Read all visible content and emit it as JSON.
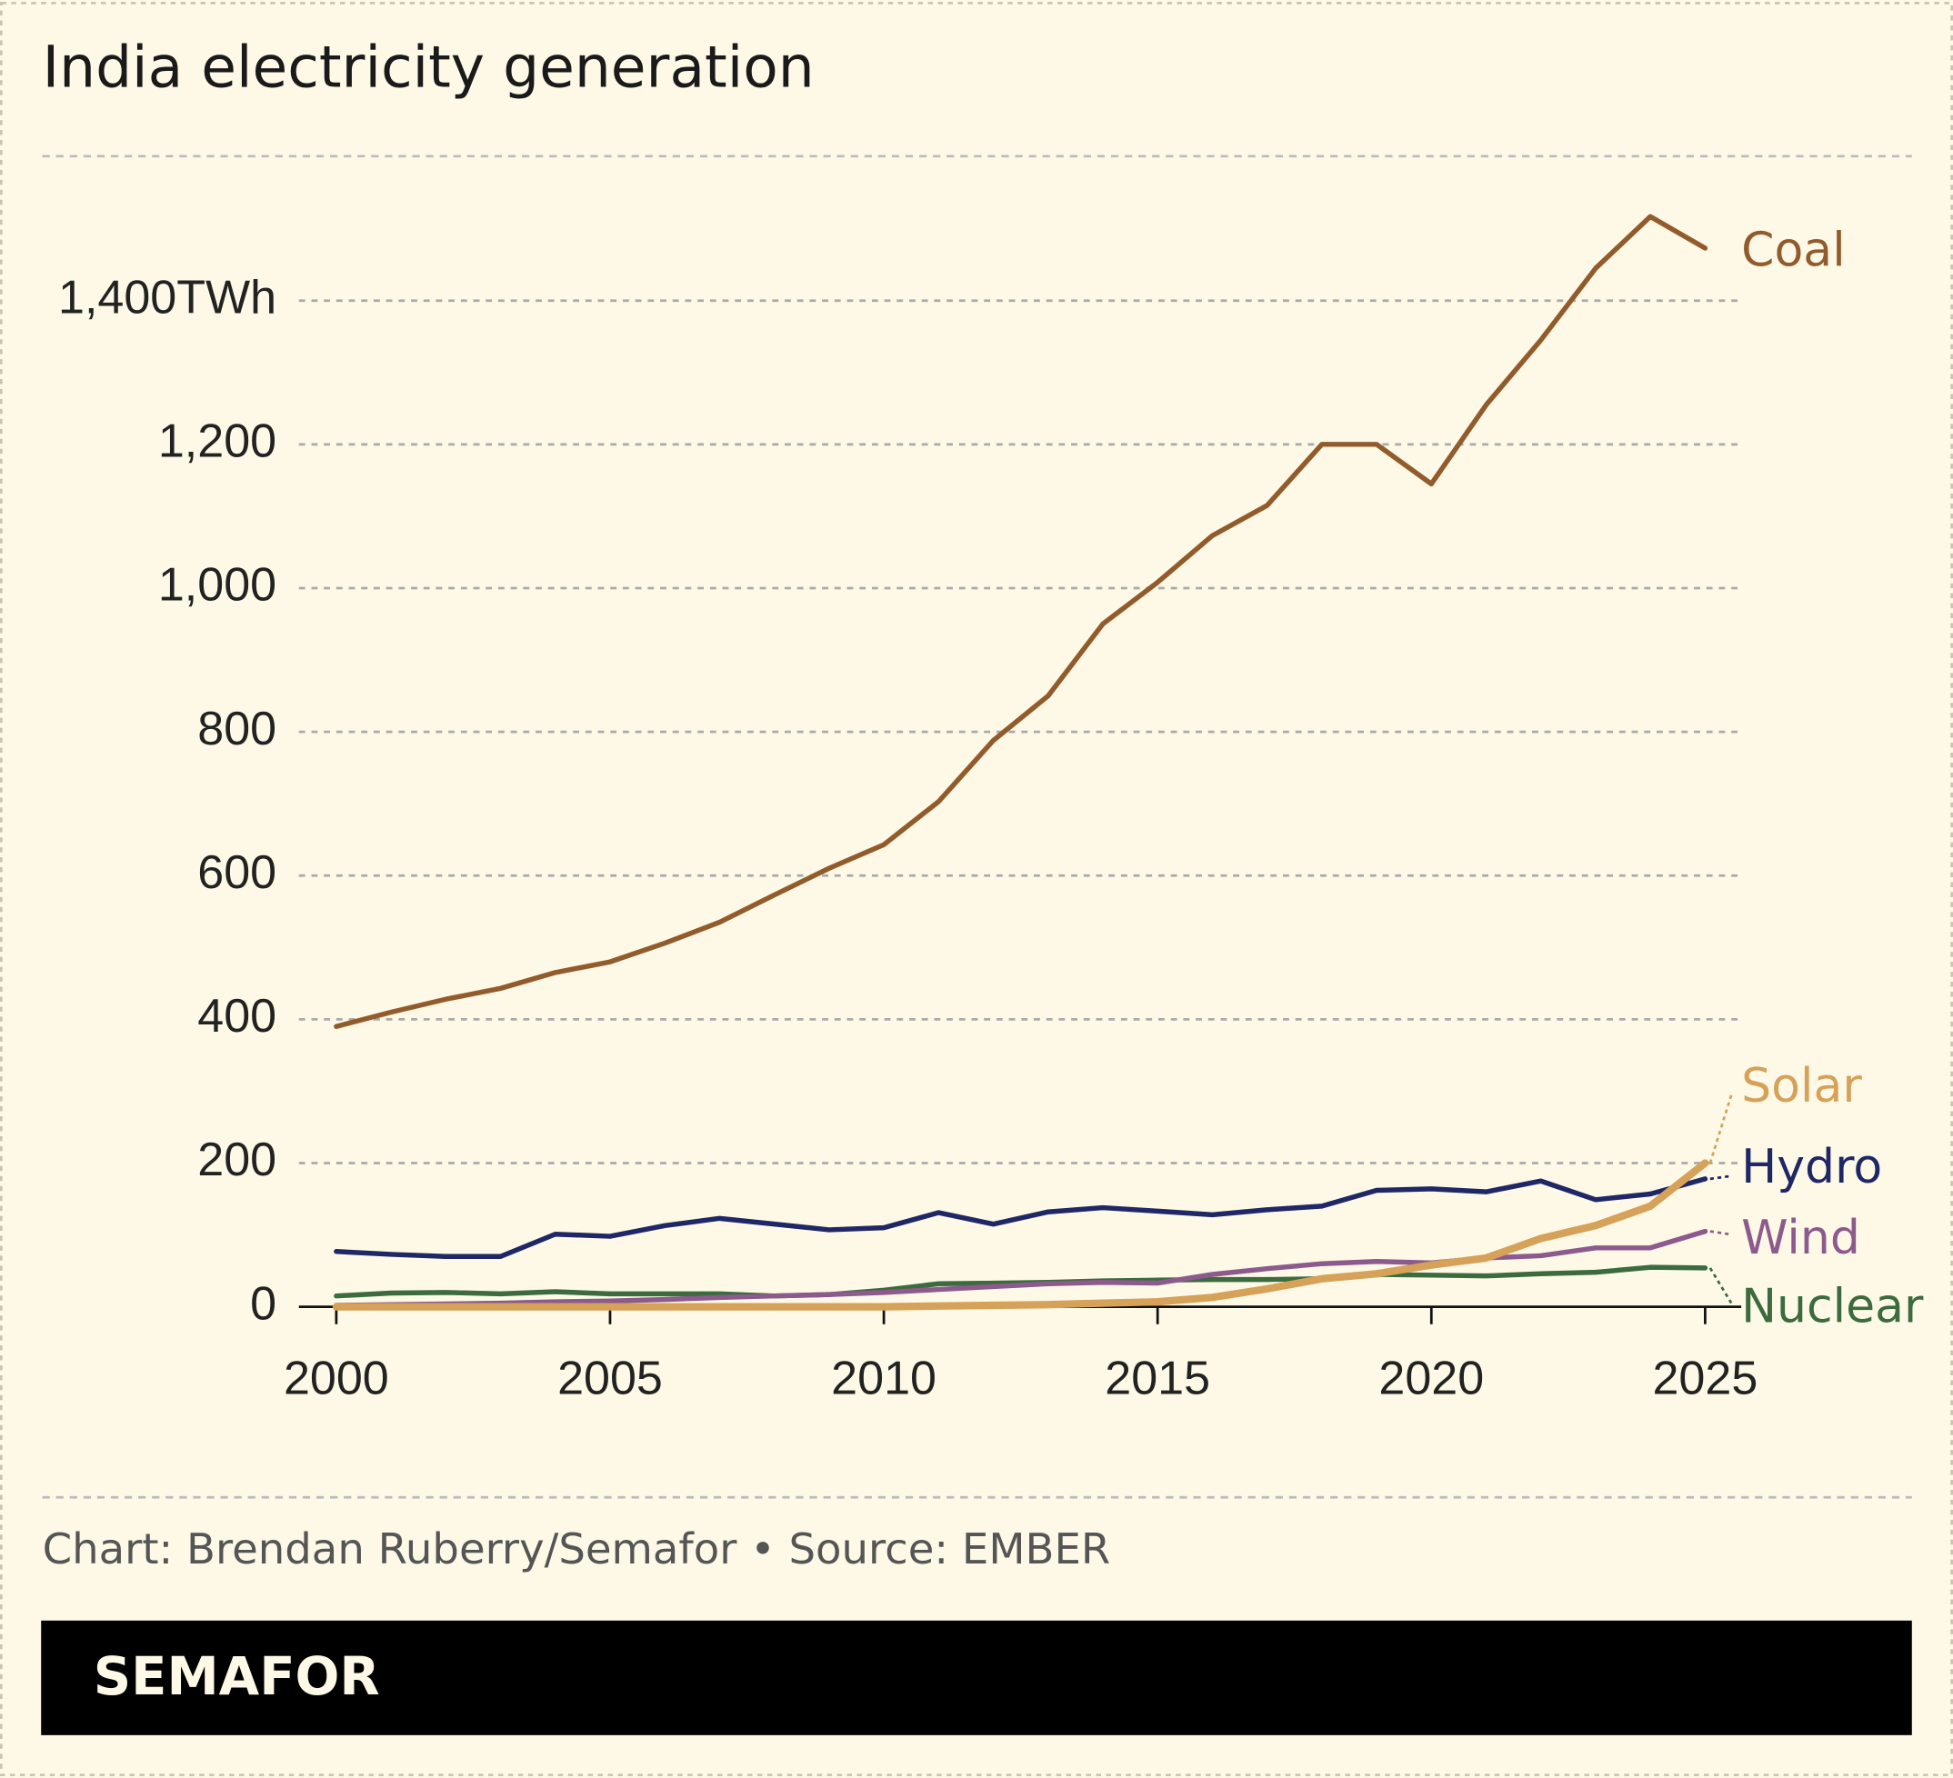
{
  "chart_data": {
    "type": "line",
    "title": "India electricity generation",
    "source": "Chart: Brendan Ruberry/Semafor • Source: EMBER",
    "brand": "SEMAFOR",
    "x": [
      2000,
      2001,
      2002,
      2003,
      2004,
      2005,
      2006,
      2007,
      2008,
      2009,
      2010,
      2011,
      2012,
      2013,
      2014,
      2015,
      2016,
      2017,
      2018,
      2019,
      2020,
      2021,
      2022,
      2023,
      2024,
      2025
    ],
    "xlim": [
      2000,
      2025
    ],
    "xticks": [
      2000,
      2005,
      2010,
      2015,
      2020,
      2025
    ],
    "ylim": [
      0,
      1550
    ],
    "yticks": [
      0,
      200,
      400,
      600,
      800,
      {
        "value": 1000,
        "label": "1,000"
      },
      {
        "value": 1200,
        "label": "1,200"
      },
      {
        "value": 1400,
        "label": "1,400TWh"
      }
    ],
    "grid": true,
    "series": [
      {
        "name": "Coal",
        "color": "#925b2c",
        "values": [
          390,
          410,
          428,
          443,
          465,
          480,
          506,
          535,
          573,
          610,
          643,
          703,
          788,
          850,
          950,
          1008,
          1073,
          1115,
          1200,
          1200,
          1145,
          1255,
          1345,
          1445,
          1517,
          1473
        ]
      },
      {
        "name": "Solar",
        "color": "#d6a158",
        "values": [
          0,
          0,
          0,
          0,
          0,
          0,
          0,
          0,
          0,
          0,
          0,
          1,
          2,
          3,
          5,
          7,
          13,
          25,
          39,
          46,
          58,
          68,
          95,
          113,
          140,
          200
        ]
      },
      {
        "name": "Hydro",
        "color": "#1f2766",
        "values": [
          77,
          73,
          70,
          70,
          101,
          98,
          113,
          123,
          115,
          107,
          110,
          131,
          115,
          132,
          138,
          133,
          128,
          135,
          140,
          162,
          164,
          160,
          175,
          149,
          157,
          178
        ]
      },
      {
        "name": "Wind",
        "color": "#8c5a8c",
        "values": [
          2,
          3,
          4,
          5,
          7,
          8,
          10,
          13,
          15,
          17,
          20,
          24,
          28,
          32,
          34,
          33,
          45,
          53,
          60,
          63,
          61,
          68,
          71,
          82,
          82,
          105
        ]
      },
      {
        "name": "Nuclear",
        "color": "#3b6b3e",
        "values": [
          15,
          19,
          20,
          18,
          21,
          18,
          18,
          18,
          15,
          17,
          23,
          32,
          33,
          34,
          36,
          37,
          38,
          38,
          39,
          45,
          44,
          43,
          46,
          48,
          55,
          54
        ]
      }
    ]
  }
}
